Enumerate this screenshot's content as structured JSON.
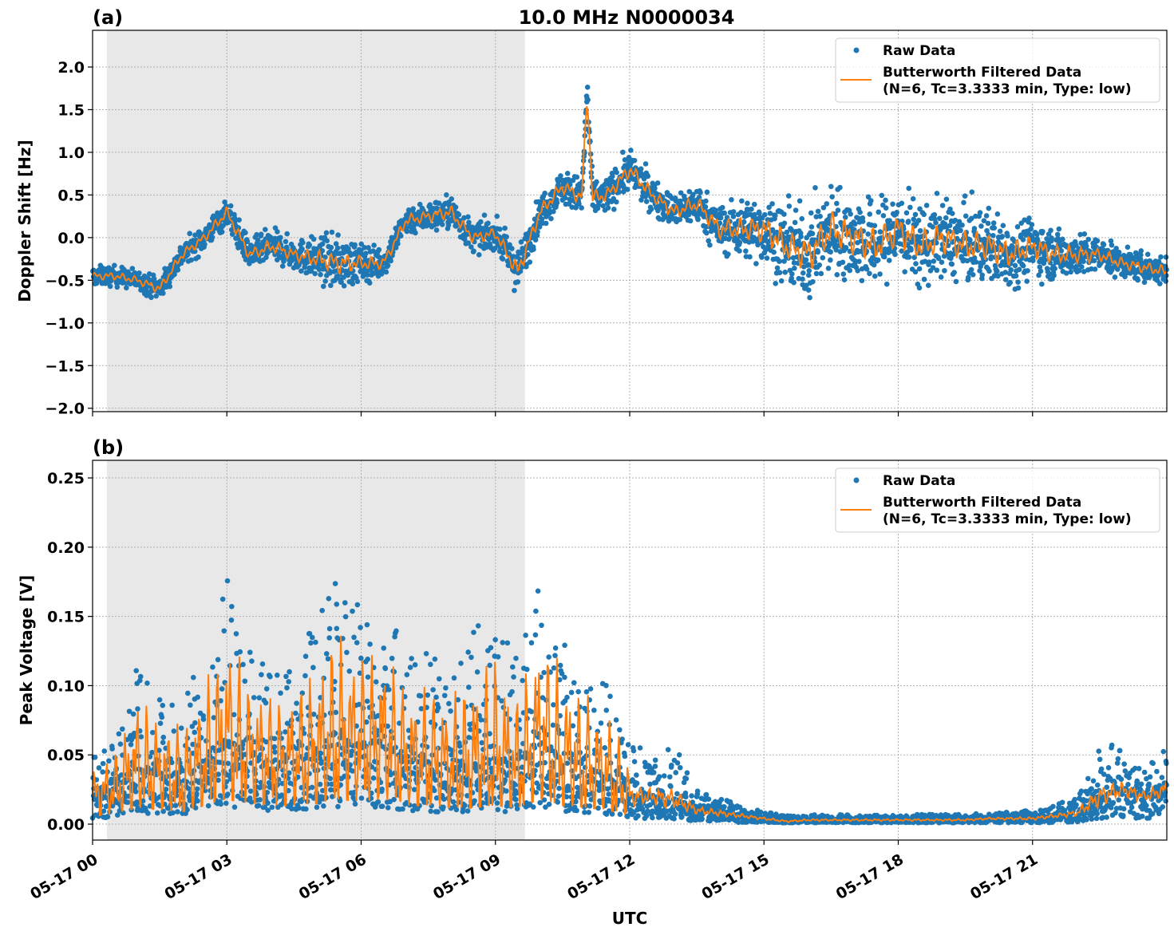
{
  "chart_data": [
    {
      "type": "scatter",
      "panel_label": "(a)",
      "title": "10.0 MHz N0000034",
      "xlabel": "",
      "ylabel": "Doppler Shift [Hz]",
      "xlim_hours_utc": [
        0,
        24
      ],
      "ylim": [
        -2.04,
        2.43
      ],
      "yticks": [
        -2.0,
        -1.5,
        -1.0,
        -0.5,
        0.0,
        0.5,
        1.0,
        1.5,
        2.0
      ],
      "ytick_labels": [
        "−2.0",
        "−1.5",
        "−1.0",
        "−0.5",
        "0.0",
        "0.5",
        "1.0",
        "1.5",
        "2.0"
      ],
      "grid": true,
      "shaded_region_hours_utc": [
        0.32,
        9.66
      ],
      "legend_position": "top-right",
      "legend": [
        "Raw Data",
        "Butterworth Filtered Data",
        "(N=6, Tc=3.3333 min, Type: low)"
      ],
      "series": [
        {
          "name": "Raw Data",
          "style": "points",
          "color": "#1f77b4",
          "spread": [
            0.2,
            0.2,
            0.2,
            0.25,
            0.25,
            0.25,
            0.3,
            0.3,
            0.35,
            0.3,
            0.45,
            0.55,
            0.4,
            0.3,
            0.3,
            0.3,
            0.35,
            0.3,
            0.3,
            0.45,
            0.35,
            0.35,
            0.4,
            0.35,
            0.4,
            0.35,
            0.35,
            0.4,
            0.5,
            0.6,
            0.7,
            0.8,
            0.9,
            0.9,
            0.9,
            0.9,
            0.85,
            0.85,
            0.8,
            0.8,
            0.75,
            0.7,
            0.6,
            0.5,
            0.45,
            0.35,
            0.3,
            0.3,
            0.3
          ]
        },
        {
          "name": "Butterworth Filtered Data",
          "style": "line",
          "color": "#ff7f0e",
          "x_hours_utc": [
            0,
            0.5,
            1,
            1.5,
            2,
            2.5,
            3,
            3.5,
            4,
            4.5,
            5,
            5.5,
            6,
            6.5,
            7,
            7.5,
            8,
            8.5,
            9,
            9.5,
            10,
            10.5,
            11,
            11.5,
            12,
            12.5,
            13,
            13.5,
            14,
            14.5,
            15,
            15.5,
            16,
            16.5,
            17,
            17.5,
            18,
            18.5,
            19,
            19.5,
            20,
            20.5,
            21,
            21.5,
            22,
            22.5,
            23,
            23.5,
            24
          ],
          "values": [
            -0.45,
            -0.45,
            -0.5,
            -0.6,
            -0.2,
            0.0,
            0.3,
            -0.2,
            -0.1,
            -0.2,
            -0.25,
            -0.3,
            -0.3,
            -0.3,
            0.2,
            0.25,
            0.3,
            0.0,
            0.05,
            -0.4,
            0.3,
            0.6,
            0.45,
            0.5,
            0.8,
            0.5,
            0.3,
            0.4,
            0.1,
            0.1,
            0.1,
            -0.1,
            -0.2,
            0.1,
            0.0,
            -0.1,
            0.1,
            -0.1,
            0.0,
            -0.1,
            -0.1,
            -0.2,
            -0.1,
            -0.2,
            -0.2,
            -0.2,
            -0.3,
            -0.35,
            -0.4
          ],
          "peak": {
            "x_hours_utc": 11.05,
            "value": 1.7
          }
        }
      ]
    },
    {
      "type": "scatter",
      "panel_label": "(b)",
      "xlabel": "UTC",
      "ylabel": "Peak Voltage [V]",
      "xlim_hours_utc": [
        0,
        24
      ],
      "ylim": [
        -0.0115,
        0.2627
      ],
      "yticks": [
        0.0,
        0.05,
        0.1,
        0.15,
        0.2,
        0.25
      ],
      "ytick_labels": [
        "0.00",
        "0.05",
        "0.10",
        "0.15",
        "0.20",
        "0.25"
      ],
      "xticks_hours_utc": [
        0,
        3,
        6,
        9,
        12,
        15,
        18,
        21
      ],
      "xtick_labels": [
        "05-17 00",
        "05-17 03",
        "05-17 06",
        "05-17 09",
        "05-17 12",
        "05-17 15",
        "05-17 18",
        "05-17 21"
      ],
      "grid": true,
      "shaded_region_hours_utc": [
        0.32,
        9.66
      ],
      "legend_position": "top-right",
      "legend": [
        "Raw Data",
        "Butterworth Filtered Data",
        "(N=6, Tc=3.3333 min, Type: low)"
      ],
      "series": [
        {
          "name": "Raw Data",
          "style": "points",
          "color": "#1f77b4",
          "spread": [
            0.03,
            0.04,
            0.08,
            0.06,
            0.06,
            0.08,
            0.12,
            0.08,
            0.07,
            0.07,
            0.1,
            0.12,
            0.1,
            0.1,
            0.08,
            0.08,
            0.08,
            0.1,
            0.12,
            0.08,
            0.12,
            0.1,
            0.08,
            0.07,
            0.04,
            0.03,
            0.04,
            0.015,
            0.012,
            0.008,
            0.005,
            0.004,
            0.004,
            0.004,
            0.004,
            0.004,
            0.004,
            0.004,
            0.004,
            0.004,
            0.004,
            0.005,
            0.006,
            0.008,
            0.012,
            0.04,
            0.03,
            0.02,
            0.03
          ]
        },
        {
          "name": "Butterworth Filtered Data",
          "style": "line",
          "color": "#ff7f0e",
          "x_hours_utc": [
            0,
            0.5,
            1,
            1.5,
            2,
            2.5,
            3,
            3.5,
            4,
            4.5,
            5,
            5.5,
            6,
            6.5,
            7,
            7.5,
            8,
            8.5,
            9,
            9.5,
            10,
            10.5,
            11,
            11.5,
            12,
            12.5,
            13,
            13.5,
            14,
            14.5,
            15,
            15.5,
            16,
            16.5,
            17,
            17.5,
            18,
            18.5,
            19,
            19.5,
            20,
            20.5,
            21,
            21.5,
            22,
            22.5,
            23,
            23.5,
            24
          ],
          "values": [
            0.02,
            0.025,
            0.04,
            0.035,
            0.03,
            0.045,
            0.06,
            0.05,
            0.045,
            0.045,
            0.05,
            0.06,
            0.055,
            0.06,
            0.045,
            0.045,
            0.04,
            0.04,
            0.045,
            0.04,
            0.06,
            0.045,
            0.04,
            0.035,
            0.02,
            0.02,
            0.018,
            0.01,
            0.008,
            0.006,
            0.004,
            0.002,
            0.003,
            0.003,
            0.003,
            0.003,
            0.003,
            0.003,
            0.003,
            0.003,
            0.004,
            0.004,
            0.004,
            0.006,
            0.008,
            0.02,
            0.025,
            0.02,
            0.025
          ]
        }
      ]
    }
  ]
}
